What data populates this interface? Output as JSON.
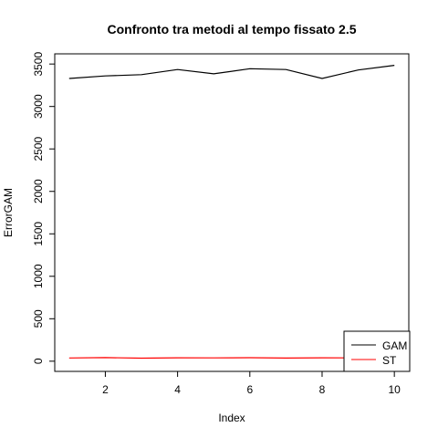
{
  "chart_data": {
    "type": "line",
    "title": "Confronto tra metodi al tempo fissato 2.5",
    "xlabel": "Index",
    "ylabel": "ErrorGAM",
    "xlim": [
      0.6,
      10.4
    ],
    "ylim": [
      -120,
      3620
    ],
    "x_ticks": [
      2,
      4,
      6,
      8,
      10
    ],
    "y_ticks": [
      0,
      500,
      1000,
      1500,
      2000,
      2500,
      3000,
      3500
    ],
    "grid": false,
    "legend": {
      "position": "bottom-right"
    },
    "x": [
      1,
      2,
      3,
      4,
      5,
      6,
      7,
      8,
      9,
      10
    ],
    "series": [
      {
        "name": "GAM",
        "color": "#000000",
        "values": [
          3330,
          3360,
          3375,
          3435,
          3385,
          3445,
          3435,
          3330,
          3430,
          3485
        ]
      },
      {
        "name": "ST",
        "color": "#ff0000",
        "values": [
          38,
          42,
          36,
          40,
          39,
          41,
          37,
          40,
          39,
          41
        ]
      }
    ]
  }
}
